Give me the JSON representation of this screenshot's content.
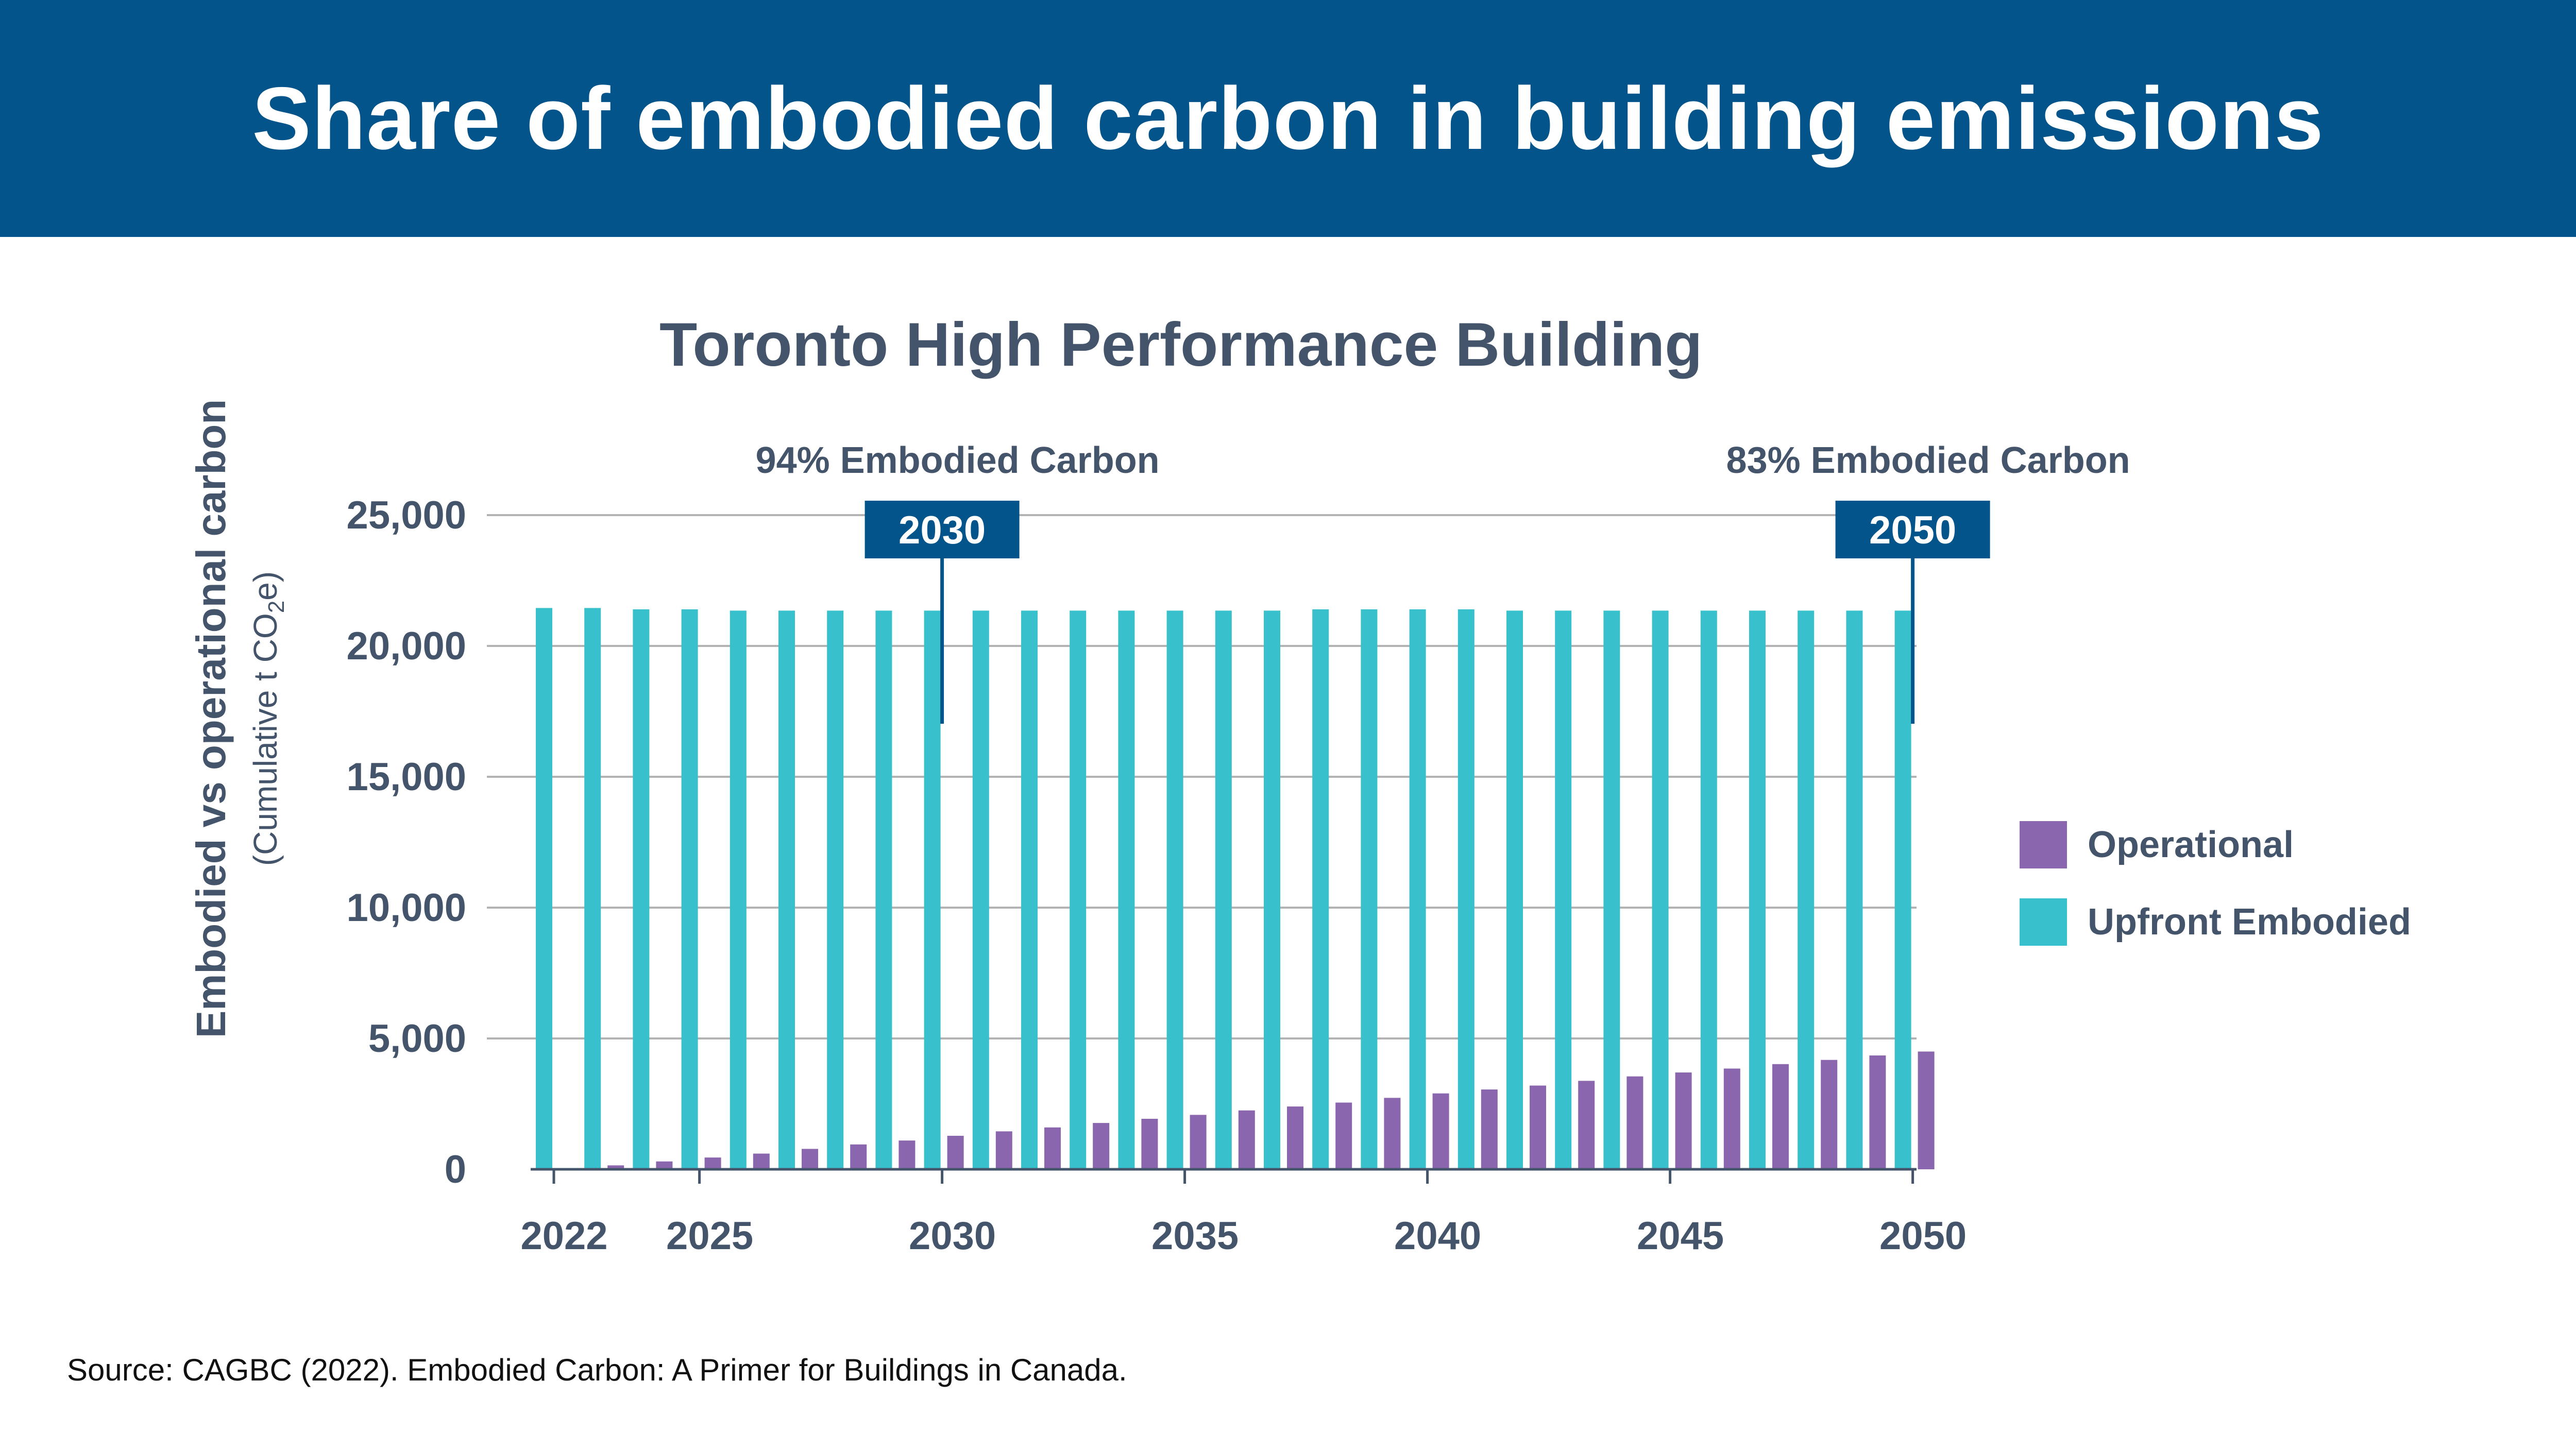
{
  "header": {
    "title": "Share of embodied carbon in building emissions"
  },
  "colors": {
    "header_bg": "#02548a",
    "operational": "#8a66ae",
    "embodied": "#38c0cc",
    "text": "#44546a",
    "callout": "#02548a"
  },
  "chart_data": {
    "type": "bar",
    "title": "Toronto High Performance Building",
    "ylabel": "Embodied vs operational carbon",
    "ylabel_sub": "(Cumulative t CO",
    "ylabel_sub_subscript": "2",
    "ylabel_sub_tail": "e)",
    "ylim": [
      0,
      25000
    ],
    "yticks": [
      0,
      5000,
      10000,
      15000,
      20000,
      25000
    ],
    "ytick_labels": [
      "0",
      "5,000",
      "10,000",
      "15,000",
      "20,000",
      "25,000"
    ],
    "xtick_labels": [
      "2022",
      "2025",
      "2030",
      "2035",
      "2040",
      "2045",
      "2050"
    ],
    "xtick_years": [
      2022,
      2025,
      2030,
      2035,
      2040,
      2045,
      2050
    ],
    "legend_position": "right",
    "categories": [
      2022,
      2023,
      2024,
      2025,
      2026,
      2027,
      2028,
      2029,
      2030,
      2031,
      2032,
      2033,
      2034,
      2035,
      2036,
      2037,
      2038,
      2039,
      2040,
      2041,
      2042,
      2043,
      2044,
      2045,
      2046,
      2047,
      2048,
      2049,
      2050
    ],
    "series": [
      {
        "name": "Operational",
        "color": "#8a66ae",
        "values": [
          0,
          150,
          300,
          450,
          600,
          780,
          950,
          1100,
          1280,
          1450,
          1600,
          1770,
          1930,
          2080,
          2250,
          2400,
          2550,
          2730,
          2900,
          3050,
          3200,
          3380,
          3550,
          3700,
          3850,
          4020,
          4180,
          4350,
          4500
        ]
      },
      {
        "name": "Upfront Embodied",
        "color": "#38c0cc",
        "values": [
          21450,
          21450,
          21400,
          21400,
          21350,
          21350,
          21350,
          21350,
          21350,
          21350,
          21350,
          21350,
          21350,
          21350,
          21350,
          21350,
          21400,
          21400,
          21400,
          21400,
          21350,
          21350,
          21350,
          21350,
          21350,
          21350,
          21350,
          21350,
          21350
        ]
      }
    ],
    "annotations": [
      {
        "year": 2030,
        "label": "2030",
        "text": "94% Embodied Carbon"
      },
      {
        "year": 2050,
        "label": "2050",
        "text": "83% Embodied Carbon"
      }
    ]
  },
  "source": "Source: CAGBC (2022). Embodied Carbon: A Primer for Buildings in Canada."
}
